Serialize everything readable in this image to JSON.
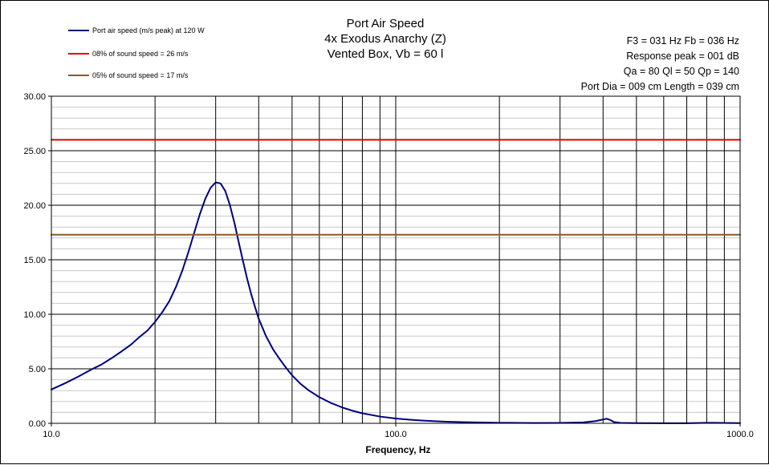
{
  "chart_data": {
    "type": "line",
    "title": [
      "Port Air Speed",
      "4x Exodus Anarchy (Z)",
      "Vented Box, Vb = 60 l"
    ],
    "info": [
      "F3 = 031  Hz   Fb = 036  Hz",
      "Response peak = 001  dB",
      "Qa = 80   Ql = 50   Qp = 140",
      "Port Dia = 009  cm   Length = 039  cm"
    ],
    "xlabel": "Frequency, Hz",
    "x_scale": "log",
    "xlim": [
      10,
      1000
    ],
    "ylim": [
      0,
      30
    ],
    "x_tick_labels": [
      "10.0",
      "100.0",
      "1000.0"
    ],
    "y_tick_labels": [
      "0.00",
      "5.00",
      "10.00",
      "15.00",
      "20.00",
      "25.00",
      "30.00"
    ],
    "grid": true,
    "legend_position": "top-left",
    "series": [
      {
        "name": "Port air speed (m/s  peak) at 120 W",
        "color": "#000080",
        "x": [
          10,
          11,
          12,
          13,
          14,
          15,
          16,
          17,
          18,
          19,
          20,
          21,
          22,
          23,
          24,
          25,
          26,
          27,
          28,
          29,
          30,
          31,
          32,
          33,
          34,
          35,
          36,
          37,
          38,
          39,
          40,
          42,
          44,
          46,
          48,
          50,
          53,
          56,
          60,
          65,
          70,
          75,
          80,
          90,
          100,
          110,
          120,
          140,
          160,
          180,
          200,
          250,
          300,
          350,
          380,
          400,
          410,
          420,
          430,
          450,
          500,
          600,
          700,
          800,
          1000
        ],
        "y": [
          3.1,
          3.7,
          4.3,
          4.9,
          5.4,
          6.0,
          6.6,
          7.2,
          7.9,
          8.5,
          9.3,
          10.2,
          11.2,
          12.5,
          14.0,
          15.7,
          17.5,
          19.2,
          20.6,
          21.6,
          22.1,
          22.0,
          21.3,
          20.0,
          18.4,
          16.6,
          14.9,
          13.3,
          11.9,
          10.7,
          9.6,
          8.0,
          6.8,
          5.9,
          5.1,
          4.4,
          3.6,
          3.0,
          2.4,
          1.85,
          1.45,
          1.15,
          0.92,
          0.62,
          0.44,
          0.33,
          0.25,
          0.15,
          0.1,
          0.07,
          0.05,
          0.03,
          0.04,
          0.08,
          0.2,
          0.35,
          0.42,
          0.3,
          0.12,
          0.04,
          0.02,
          0.01,
          0.01,
          0.05,
          0.02
        ]
      },
      {
        "name": "08% of sound speed = 26 m/s",
        "color": "#e00000",
        "x": [
          10,
          1000
        ],
        "y": [
          26,
          26
        ]
      },
      {
        "name": "05% of sound speed = 17 m/s",
        "color": "#8b5a2b",
        "x": [
          10,
          1000
        ],
        "y": [
          17.3,
          17.3
        ]
      }
    ]
  }
}
